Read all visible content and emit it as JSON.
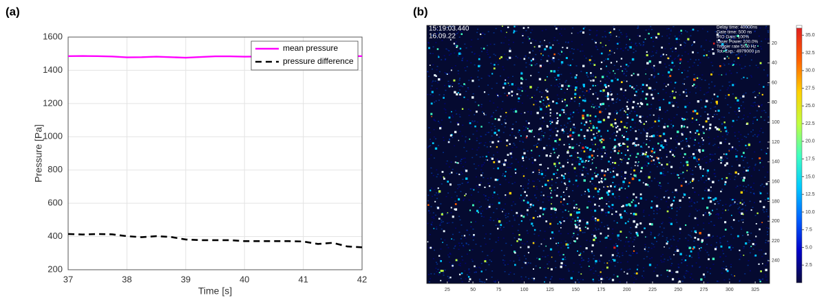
{
  "chart_data": [
    {
      "type": "line",
      "panel_label": "(a)",
      "x": [
        37,
        37.25,
        37.5,
        37.75,
        38,
        38.25,
        38.5,
        38.75,
        39,
        39.25,
        39.5,
        39.75,
        40,
        40.25,
        40.5,
        40.75,
        41,
        41.25,
        41.5,
        41.75,
        42
      ],
      "series": [
        {
          "name": "mean pressure",
          "color": "#ff00ff",
          "line_style": "solid",
          "values": [
            1485,
            1486,
            1485,
            1483,
            1478,
            1479,
            1482,
            1479,
            1476,
            1480,
            1484,
            1484,
            1482,
            1483,
            1485,
            1485,
            1486,
            1485,
            1485,
            1485,
            1485
          ]
        },
        {
          "name": "pressure difference",
          "color": "#000000",
          "line_style": "dashed",
          "values": [
            415,
            412,
            415,
            413,
            402,
            396,
            402,
            397,
            382,
            378,
            378,
            378,
            372,
            372,
            372,
            372,
            370,
            355,
            362,
            340,
            335
          ]
        }
      ],
      "xlim": [
        37,
        42
      ],
      "ylim": [
        200,
        1600
      ],
      "xticks": [
        37,
        38,
        39,
        40,
        41,
        42
      ],
      "yticks": [
        200,
        400,
        600,
        800,
        1000,
        1200,
        1400,
        1600
      ],
      "xlabel": "Time [s]",
      "ylabel": "Pressure [Pa]",
      "grid": true,
      "legend": "upper right"
    },
    {
      "type": "image",
      "panel_label": "(b)",
      "timestamp": "15:19:03.440",
      "date": "16.09.22",
      "info": [
        "Delay time: 40000ns",
        "Gate time: 500 ns",
        "IRO Gain: 100%",
        "Laser Power 100.0%",
        "Trigger rate 50.0 Hz",
        "Tot. Exp.: 4979000 µs"
      ],
      "xlim": [
        5,
        339
      ],
      "ylim": [
        2,
        263
      ],
      "xticks": [
        25,
        50,
        75,
        100,
        125,
        150,
        175,
        200,
        225,
        250,
        275,
        300,
        325
      ],
      "yticks": [
        20,
        40,
        60,
        80,
        100,
        120,
        140,
        160,
        180,
        200,
        220,
        240
      ],
      "clim": [
        0,
        36
      ],
      "cticks": [
        2.5,
        {
          "value": 5,
          "label": "5.0"
        },
        7.5,
        {
          "value": 10,
          "label": "10.0"
        },
        12.5,
        {
          "value": 15,
          "label": "15.0"
        },
        17.5,
        {
          "value": 20,
          "label": "20.0"
        },
        22.5,
        {
          "value": 25,
          "label": "25.0"
        },
        27.5,
        {
          "value": 30,
          "label": "30.0"
        },
        32.5,
        {
          "value": 35,
          "label": "35.0"
        }
      ],
      "colormap": [
        "#0b0b3b",
        "#0000c8",
        "#0060ff",
        "#00c8ff",
        "#40ffc0",
        "#c0ff40",
        "#ffd000",
        "#ff6000",
        "#e02020"
      ]
    }
  ]
}
